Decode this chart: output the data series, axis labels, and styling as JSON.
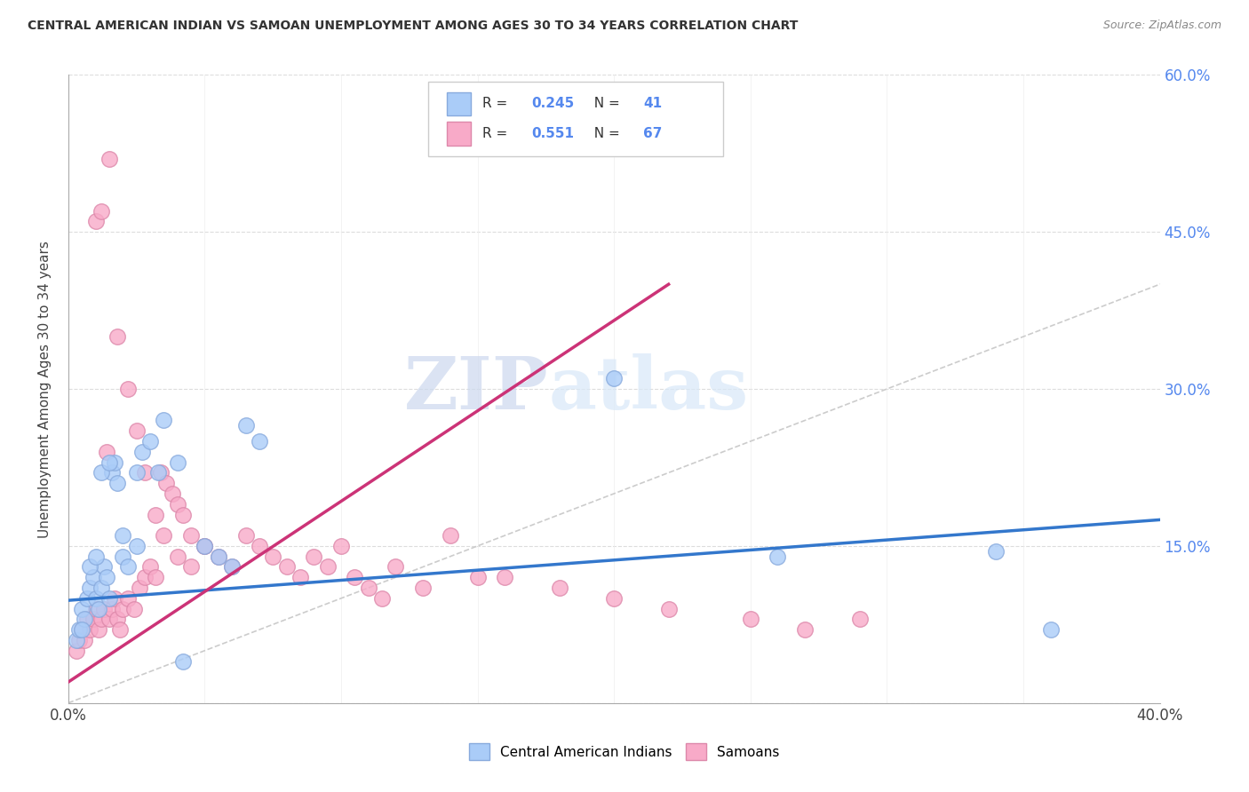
{
  "title": "CENTRAL AMERICAN INDIAN VS SAMOAN UNEMPLOYMENT AMONG AGES 30 TO 34 YEARS CORRELATION CHART",
  "source": "Source: ZipAtlas.com",
  "ylabel": "Unemployment Among Ages 30 to 34 years",
  "xlim": [
    0,
    0.4
  ],
  "ylim": [
    0,
    0.6
  ],
  "xticks": [
    0.0,
    0.05,
    0.1,
    0.15,
    0.2,
    0.25,
    0.3,
    0.35,
    0.4
  ],
  "yticks": [
    0.0,
    0.15,
    0.3,
    0.45,
    0.6
  ],
  "blue_R": "0.245",
  "blue_N": "41",
  "pink_R": "0.551",
  "pink_N": "67",
  "blue_color": "#aaccf8",
  "pink_color": "#f8aac8",
  "blue_edge": "#88aadd",
  "pink_edge": "#dd88aa",
  "blue_line_color": "#3377cc",
  "pink_line_color": "#cc3377",
  "ref_line_color": "#cccccc",
  "watermark_zip": "ZIP",
  "watermark_atlas": "atlas",
  "legend_blue_label": "Central American Indians",
  "legend_pink_label": "Samoans",
  "blue_trend_x": [
    0.0,
    0.4
  ],
  "blue_trend_y": [
    0.098,
    0.175
  ],
  "pink_trend_x": [
    0.0,
    0.22
  ],
  "pink_trend_y": [
    0.02,
    0.4
  ],
  "ref_line_x": [
    0.0,
    0.6
  ],
  "ref_line_y": [
    0.0,
    0.6
  ],
  "blue_scatter_x": [
    0.003,
    0.004,
    0.005,
    0.006,
    0.007,
    0.008,
    0.009,
    0.01,
    0.011,
    0.012,
    0.013,
    0.014,
    0.015,
    0.016,
    0.017,
    0.018,
    0.02,
    0.022,
    0.025,
    0.027,
    0.03,
    0.033,
    0.035,
    0.04,
    0.042,
    0.05,
    0.055,
    0.06,
    0.065,
    0.07,
    0.005,
    0.008,
    0.01,
    0.012,
    0.015,
    0.02,
    0.025,
    0.2,
    0.26,
    0.34,
    0.36
  ],
  "blue_scatter_y": [
    0.06,
    0.07,
    0.09,
    0.08,
    0.1,
    0.11,
    0.12,
    0.1,
    0.09,
    0.11,
    0.13,
    0.12,
    0.1,
    0.22,
    0.23,
    0.21,
    0.14,
    0.13,
    0.22,
    0.24,
    0.25,
    0.22,
    0.27,
    0.23,
    0.04,
    0.15,
    0.14,
    0.13,
    0.265,
    0.25,
    0.07,
    0.13,
    0.14,
    0.22,
    0.23,
    0.16,
    0.15,
    0.31,
    0.14,
    0.145,
    0.07
  ],
  "pink_scatter_x": [
    0.003,
    0.004,
    0.005,
    0.006,
    0.007,
    0.008,
    0.009,
    0.01,
    0.011,
    0.012,
    0.013,
    0.014,
    0.015,
    0.016,
    0.017,
    0.018,
    0.019,
    0.02,
    0.022,
    0.024,
    0.026,
    0.028,
    0.03,
    0.032,
    0.034,
    0.036,
    0.038,
    0.04,
    0.042,
    0.045,
    0.05,
    0.055,
    0.06,
    0.065,
    0.07,
    0.075,
    0.08,
    0.085,
    0.09,
    0.095,
    0.1,
    0.105,
    0.11,
    0.115,
    0.12,
    0.13,
    0.14,
    0.15,
    0.16,
    0.18,
    0.2,
    0.22,
    0.25,
    0.27,
    0.29,
    0.01,
    0.012,
    0.015,
    0.018,
    0.022,
    0.025,
    0.028,
    0.032,
    0.035,
    0.04,
    0.045,
    0.05
  ],
  "pink_scatter_y": [
    0.05,
    0.06,
    0.07,
    0.06,
    0.08,
    0.07,
    0.08,
    0.09,
    0.07,
    0.08,
    0.09,
    0.24,
    0.08,
    0.09,
    0.1,
    0.08,
    0.07,
    0.09,
    0.1,
    0.09,
    0.11,
    0.12,
    0.13,
    0.12,
    0.22,
    0.21,
    0.2,
    0.19,
    0.18,
    0.16,
    0.15,
    0.14,
    0.13,
    0.16,
    0.15,
    0.14,
    0.13,
    0.12,
    0.14,
    0.13,
    0.15,
    0.12,
    0.11,
    0.1,
    0.13,
    0.11,
    0.16,
    0.12,
    0.12,
    0.11,
    0.1,
    0.09,
    0.08,
    0.07,
    0.08,
    0.46,
    0.47,
    0.52,
    0.35,
    0.3,
    0.26,
    0.22,
    0.18,
    0.16,
    0.14,
    0.13,
    0.15
  ]
}
